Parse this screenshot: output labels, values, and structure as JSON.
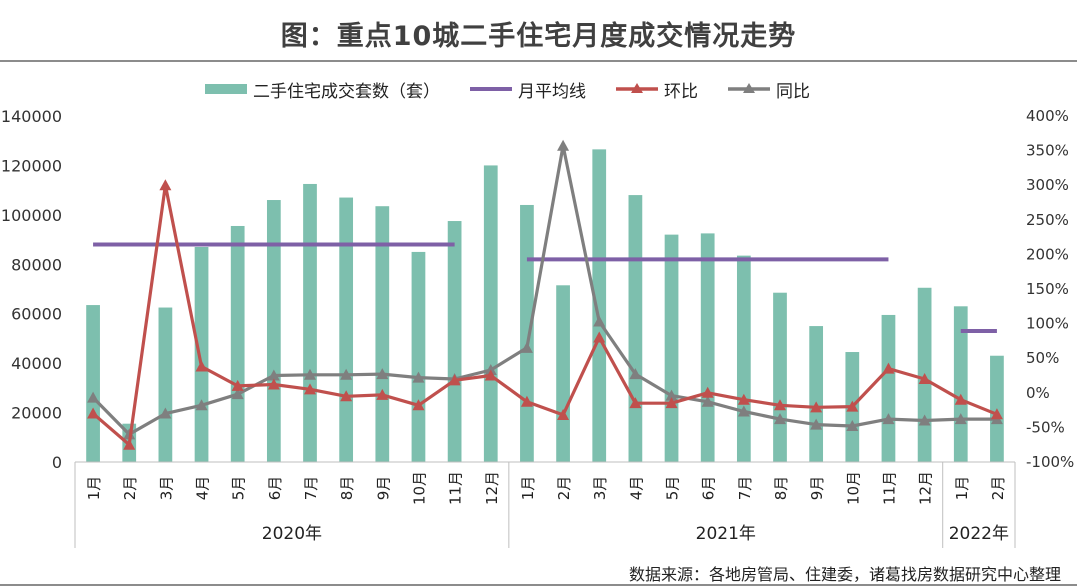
{
  "title": "图：重点10城二手住宅月度成交情况走势",
  "source": "数据来源：各地房管局、住建委，诸葛找房数据研究中心整理",
  "chart_data": {
    "type": "bar+line",
    "categories": [
      "1月",
      "2月",
      "3月",
      "4月",
      "5月",
      "6月",
      "7月",
      "8月",
      "9月",
      "10月",
      "11月",
      "12月",
      "1月",
      "2月",
      "3月",
      "4月",
      "5月",
      "6月",
      "7月",
      "8月",
      "9月",
      "10月",
      "11月",
      "12月",
      "1月",
      "2月"
    ],
    "groups": [
      {
        "label": "2020年",
        "count": 12
      },
      {
        "label": "2021年",
        "count": 12
      },
      {
        "label": "2022年",
        "count": 2
      }
    ],
    "left_axis": {
      "min": 0,
      "max": 140000,
      "step": 20000,
      "ticks": [
        "0",
        "20000",
        "40000",
        "60000",
        "80000",
        "100000",
        "120000",
        "140000"
      ]
    },
    "right_axis": {
      "min": -100,
      "max": 400,
      "step": 50,
      "ticks": [
        "-100%",
        "-50%",
        "0%",
        "50%",
        "100%",
        "150%",
        "200%",
        "250%",
        "300%",
        "350%",
        "400%"
      ]
    },
    "series": [
      {
        "name": "二手住宅成交套数（套）",
        "kind": "bar",
        "axis": "left",
        "color": "#7dbfae",
        "values": [
          63500,
          15500,
          62500,
          87000,
          95500,
          106000,
          112500,
          107000,
          103500,
          85000,
          97500,
          120000,
          104000,
          71500,
          126500,
          108000,
          92000,
          92500,
          83500,
          68500,
          55000,
          44500,
          59500,
          70500,
          63000,
          43000
        ]
      },
      {
        "name": "月平均线",
        "kind": "segments",
        "axis": "left",
        "color": "#7e60a6",
        "segments": [
          {
            "from": 0,
            "to": 10,
            "value": 88000
          },
          {
            "from": 12,
            "to": 22,
            "value": 82000
          },
          {
            "from": 24,
            "to": 25,
            "value": 53000
          }
        ]
      },
      {
        "name": "环比",
        "kind": "line",
        "axis": "right",
        "color": "#c0504d",
        "marker": "triangle",
        "values": [
          -30,
          -75,
          300,
          38,
          10,
          12,
          5,
          -5,
          -3,
          -18,
          18,
          25,
          -13,
          -32,
          80,
          -15,
          -15,
          0,
          -10,
          -18,
          -21,
          -20,
          35,
          20,
          -10,
          -31
        ]
      },
      {
        "name": "同比",
        "kind": "line",
        "axis": "right",
        "color": "#7f7f7f",
        "marker": "triangle",
        "values": [
          -7,
          -60,
          -30,
          -18,
          -2,
          25,
          26,
          26,
          27,
          22,
          20,
          33,
          65,
          357,
          103,
          27,
          -4,
          -13,
          -27,
          -38,
          -46,
          -48,
          -38,
          -40,
          -38,
          -38
        ]
      }
    ]
  }
}
